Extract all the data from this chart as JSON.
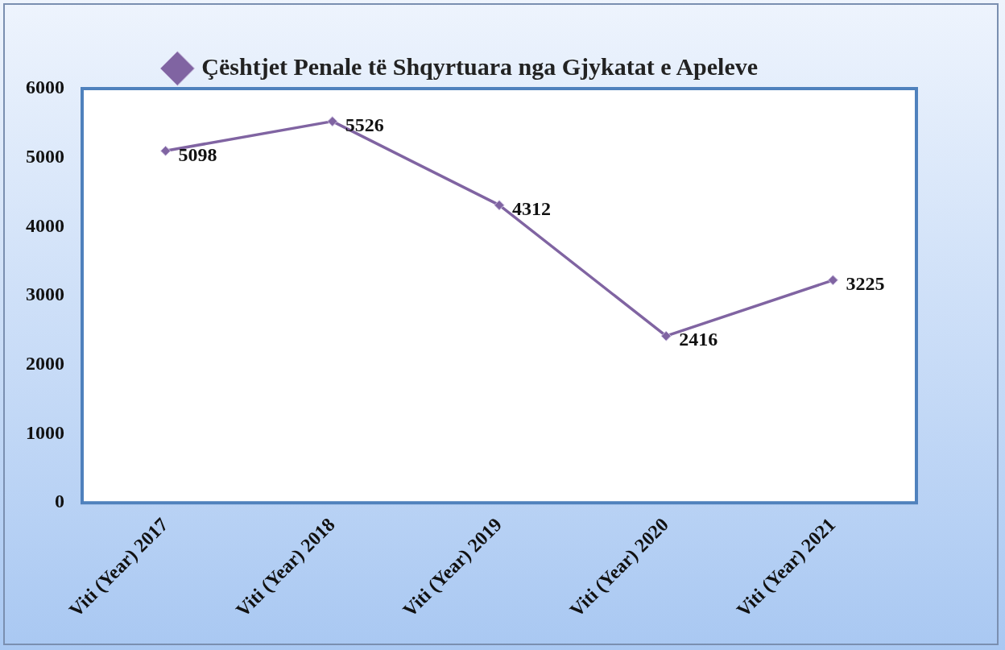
{
  "chart_data": {
    "type": "line",
    "categories": [
      "Viti (Year) 2017",
      "Viti (Year) 2018",
      "Viti (Year) 2019",
      "Viti (Year) 2020",
      "Viti (Year) 2021"
    ],
    "series": [
      {
        "name": "Çështjet Penale të Shqyrtuara nga Gjykatat e Apeleve",
        "color": "#8064a2",
        "values": [
          5098,
          5526,
          4312,
          2416,
          3225
        ]
      }
    ],
    "ylim": [
      0,
      6000
    ],
    "yticks": [
      0,
      1000,
      2000,
      3000,
      4000,
      5000,
      6000
    ],
    "legend": "top",
    "marker": "diamond",
    "line_style": "solid",
    "data_labels": true
  }
}
